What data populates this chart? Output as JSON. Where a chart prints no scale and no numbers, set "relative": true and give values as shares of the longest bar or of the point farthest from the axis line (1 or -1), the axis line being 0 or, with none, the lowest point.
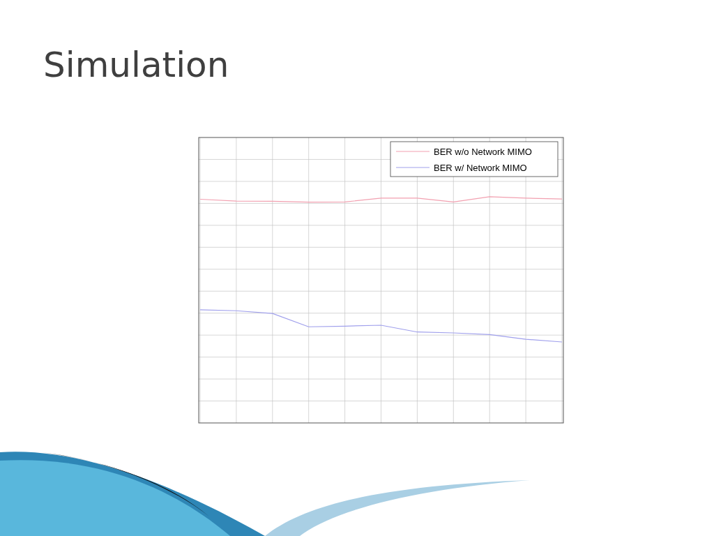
{
  "chart_data": {
    "type": "line",
    "title": "Simulation",
    "relative": true,
    "categories": [
      null,
      null,
      null,
      null,
      null,
      null,
      null,
      null,
      null,
      null,
      null
    ],
    "series": [
      {
        "name": "BER w/o Network MIMO",
        "color": "#f2a0b0",
        "values": [
          0.989,
          0.981,
          0.98,
          0.976,
          0.977,
          0.994,
          0.994,
          0.977,
          1.0,
          0.994,
          0.99
        ]
      },
      {
        "name": "BER w/ Network MIMO",
        "color": "#a0a0ec",
        "values": [
          0.5,
          0.496,
          0.484,
          0.425,
          0.428,
          0.432,
          0.402,
          0.398,
          0.391,
          0.37,
          0.358
        ]
      }
    ],
    "grid": true,
    "legend": "top right",
    "marker": "none",
    "line_style": "solid"
  }
}
